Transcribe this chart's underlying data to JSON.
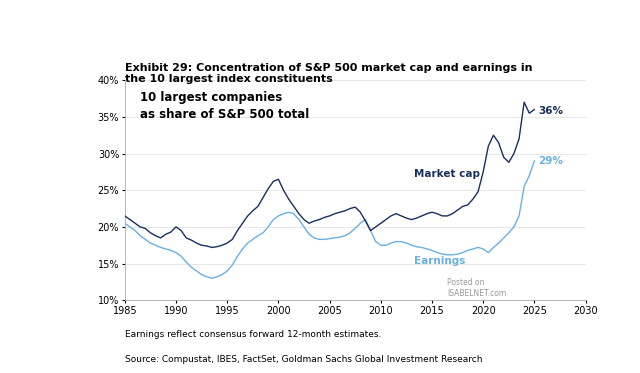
{
  "title_line1": "Exhibit 29: Concentration of S&P 500 market cap and earnings in",
  "title_line2": "the 10 largest index constituents",
  "annotation_text": "10 largest companies\nas share of S&P 500 total",
  "market_cap_label": "Market cap",
  "earnings_label": "Earnings",
  "market_cap_end_label": "36%",
  "earnings_end_label": "29%",
  "footnote1": "Earnings reflect consensus forward 12-month estimates.",
  "footnote2": "Source: Compustat, IBES, FactSet, Goldman Sachs Global Investment Research",
  "market_cap_color": "#1a2f5e",
  "earnings_color": "#6ab0e0",
  "xlim": [
    1985,
    2030
  ],
  "ylim": [
    0.1,
    0.4
  ],
  "xticks": [
    1985,
    1990,
    1995,
    2000,
    2005,
    2010,
    2015,
    2020,
    2025,
    2030
  ],
  "yticks": [
    0.1,
    0.15,
    0.2,
    0.25,
    0.3,
    0.35,
    0.4
  ],
  "background_color": "#ffffff",
  "market_cap_x": [
    1985.0,
    1985.5,
    1986.0,
    1986.5,
    1987.0,
    1987.5,
    1988.0,
    1988.5,
    1989.0,
    1989.5,
    1990.0,
    1990.5,
    1991.0,
    1991.5,
    1992.0,
    1992.5,
    1993.0,
    1993.5,
    1994.0,
    1994.5,
    1995.0,
    1995.5,
    1996.0,
    1996.5,
    1997.0,
    1997.5,
    1998.0,
    1998.5,
    1999.0,
    1999.5,
    2000.0,
    2000.5,
    2001.0,
    2001.5,
    2002.0,
    2002.5,
    2003.0,
    2003.5,
    2004.0,
    2004.5,
    2005.0,
    2005.5,
    2006.0,
    2006.5,
    2007.0,
    2007.5,
    2008.0,
    2008.5,
    2009.0,
    2009.5,
    2010.0,
    2010.5,
    2011.0,
    2011.5,
    2012.0,
    2012.5,
    2013.0,
    2013.5,
    2014.0,
    2014.5,
    2015.0,
    2015.5,
    2016.0,
    2016.5,
    2017.0,
    2017.5,
    2018.0,
    2018.5,
    2019.0,
    2019.5,
    2020.0,
    2020.5,
    2021.0,
    2021.5,
    2022.0,
    2022.5,
    2023.0,
    2023.5,
    2024.0,
    2024.5,
    2025.0
  ],
  "market_cap_y": [
    0.215,
    0.21,
    0.205,
    0.2,
    0.198,
    0.192,
    0.188,
    0.185,
    0.19,
    0.193,
    0.2,
    0.195,
    0.185,
    0.182,
    0.178,
    0.175,
    0.174,
    0.172,
    0.173,
    0.175,
    0.178,
    0.183,
    0.195,
    0.205,
    0.215,
    0.222,
    0.228,
    0.24,
    0.252,
    0.262,
    0.265,
    0.25,
    0.238,
    0.228,
    0.218,
    0.21,
    0.205,
    0.208,
    0.21,
    0.213,
    0.215,
    0.218,
    0.22,
    0.222,
    0.225,
    0.227,
    0.22,
    0.208,
    0.195,
    0.2,
    0.205,
    0.21,
    0.215,
    0.218,
    0.215,
    0.212,
    0.21,
    0.212,
    0.215,
    0.218,
    0.22,
    0.218,
    0.215,
    0.215,
    0.218,
    0.223,
    0.228,
    0.23,
    0.238,
    0.248,
    0.275,
    0.31,
    0.325,
    0.315,
    0.295,
    0.288,
    0.3,
    0.32,
    0.37,
    0.355,
    0.36
  ],
  "earnings_x": [
    1985.0,
    1985.5,
    1986.0,
    1986.5,
    1987.0,
    1987.5,
    1988.0,
    1988.5,
    1989.0,
    1989.5,
    1990.0,
    1990.5,
    1991.0,
    1991.5,
    1992.0,
    1992.5,
    1993.0,
    1993.5,
    1994.0,
    1994.5,
    1995.0,
    1995.5,
    1996.0,
    1996.5,
    1997.0,
    1997.5,
    1998.0,
    1998.5,
    1999.0,
    1999.5,
    2000.0,
    2000.5,
    2001.0,
    2001.5,
    2002.0,
    2002.5,
    2003.0,
    2003.5,
    2004.0,
    2004.5,
    2005.0,
    2005.5,
    2006.0,
    2006.5,
    2007.0,
    2007.5,
    2008.0,
    2008.5,
    2009.0,
    2009.5,
    2010.0,
    2010.5,
    2011.0,
    2011.5,
    2012.0,
    2012.5,
    2013.0,
    2013.5,
    2014.0,
    2014.5,
    2015.0,
    2015.5,
    2016.0,
    2016.5,
    2017.0,
    2017.5,
    2018.0,
    2018.5,
    2019.0,
    2019.5,
    2020.0,
    2020.5,
    2021.0,
    2021.5,
    2022.0,
    2022.5,
    2023.0,
    2023.5,
    2024.0,
    2024.5,
    2025.0
  ],
  "earnings_y": [
    0.205,
    0.2,
    0.195,
    0.188,
    0.183,
    0.178,
    0.175,
    0.172,
    0.17,
    0.168,
    0.165,
    0.16,
    0.152,
    0.145,
    0.14,
    0.135,
    0.132,
    0.13,
    0.132,
    0.135,
    0.14,
    0.148,
    0.16,
    0.17,
    0.178,
    0.183,
    0.188,
    0.192,
    0.2,
    0.21,
    0.215,
    0.218,
    0.22,
    0.218,
    0.21,
    0.2,
    0.19,
    0.185,
    0.183,
    0.183,
    0.184,
    0.185,
    0.186,
    0.188,
    0.192,
    0.198,
    0.205,
    0.21,
    0.195,
    0.18,
    0.175,
    0.175,
    0.178,
    0.18,
    0.18,
    0.178,
    0.175,
    0.173,
    0.172,
    0.17,
    0.168,
    0.165,
    0.163,
    0.162,
    0.162,
    0.163,
    0.165,
    0.168,
    0.17,
    0.172,
    0.17,
    0.165,
    0.172,
    0.178,
    0.185,
    0.192,
    0.2,
    0.215,
    0.255,
    0.27,
    0.29
  ]
}
